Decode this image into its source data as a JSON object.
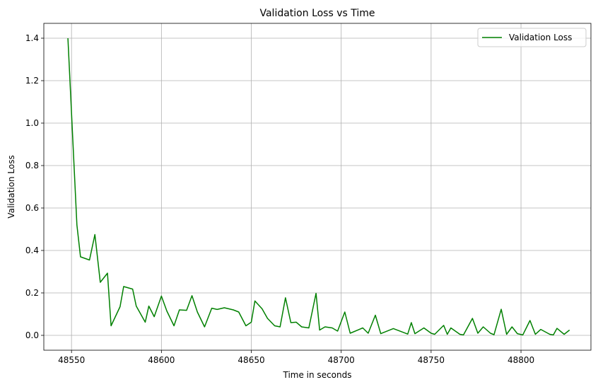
{
  "chart_data": {
    "type": "line",
    "title": "Validation Loss vs Time",
    "xlabel": "Time in seconds",
    "ylabel": "Validation Loss",
    "xlim": [
      48534.6,
      48838.9
    ],
    "ylim": [
      -0.07,
      1.47
    ],
    "xticks": [
      48550,
      48600,
      48650,
      48700,
      48750,
      48800
    ],
    "yticks": [
      0.0,
      0.2,
      0.4,
      0.6,
      0.8,
      1.0,
      1.2,
      1.4
    ],
    "xtick_labels": [
      "48550",
      "48600",
      "48650",
      "48700",
      "48750",
      "48800"
    ],
    "ytick_labels": [
      "0.0",
      "0.2",
      "0.4",
      "0.6",
      "0.8",
      "1.0",
      "1.2",
      "1.4"
    ],
    "grid": true,
    "legend_position": "top-right",
    "series": [
      {
        "name": "Validation Loss",
        "color": "#008000",
        "x": [
          48548,
          48553,
          48555,
          48560,
          48563,
          48566,
          48570,
          48572,
          48577,
          48579,
          48584,
          48586,
          48591,
          48593,
          48596,
          48600,
          48603,
          48607,
          48610,
          48614,
          48617,
          48620,
          48624,
          48628,
          48631,
          48635,
          48640,
          48643,
          48647,
          48650,
          48652,
          48656,
          48659,
          48663,
          48666,
          48669,
          48672,
          48675,
          48678,
          48682,
          48686,
          48688,
          48691,
          48695,
          48698,
          48702,
          48705,
          48712,
          48715,
          48719,
          48722,
          48729,
          48737,
          48739,
          48741,
          48746,
          48750,
          48752,
          48757,
          48759,
          48761,
          48766,
          48768,
          48773,
          48776,
          48779,
          48783,
          48785,
          48789,
          48792,
          48795,
          48798,
          48801,
          48805,
          48808,
          48811,
          48816,
          48818,
          48820,
          48824,
          48827
        ],
        "y": [
          1.4,
          0.52,
          0.37,
          0.355,
          0.475,
          0.25,
          0.293,
          0.045,
          0.135,
          0.23,
          0.218,
          0.138,
          0.062,
          0.138,
          0.088,
          0.185,
          0.115,
          0.045,
          0.12,
          0.118,
          0.187,
          0.11,
          0.04,
          0.128,
          0.122,
          0.13,
          0.12,
          0.11,
          0.045,
          0.062,
          0.162,
          0.125,
          0.08,
          0.045,
          0.04,
          0.177,
          0.06,
          0.062,
          0.04,
          0.035,
          0.198,
          0.025,
          0.04,
          0.035,
          0.02,
          0.11,
          0.01,
          0.035,
          0.01,
          0.095,
          0.008,
          0.032,
          0.006,
          0.06,
          0.008,
          0.035,
          0.01,
          0.005,
          0.047,
          0.005,
          0.035,
          0.005,
          0.002,
          0.08,
          0.01,
          0.04,
          0.01,
          0.003,
          0.123,
          0.005,
          0.04,
          0.008,
          0.002,
          0.07,
          0.005,
          0.028,
          0.005,
          0.002,
          0.033,
          0.005,
          0.025
        ]
      }
    ]
  }
}
